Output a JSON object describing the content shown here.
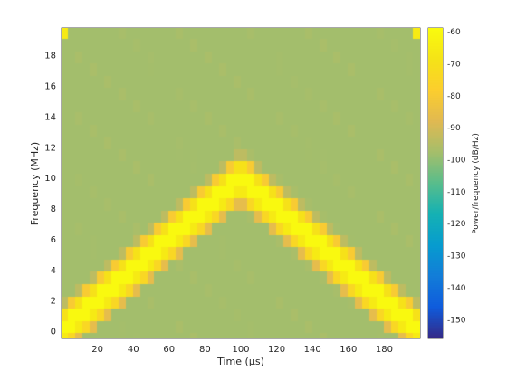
{
  "chart_data": {
    "type": "heatmap",
    "title": "",
    "xlabel": "Time (μs)",
    "ylabel": "Frequency (MHz)",
    "colorbar_label": "Power/frequency (dB/Hz)",
    "colormap": "parula",
    "xlim": [
      0,
      200
    ],
    "ylim": [
      -0.5,
      19.75
    ],
    "clim": [
      -156,
      -59
    ],
    "x_ticks": [
      20,
      40,
      60,
      80,
      100,
      120,
      140,
      160,
      180
    ],
    "x_tick_labels": [
      "20",
      "40",
      "60",
      "80",
      "100",
      "120",
      "140",
      "160",
      "180"
    ],
    "y_ticks": [
      0,
      2,
      4,
      6,
      8,
      10,
      12,
      14,
      16,
      18
    ],
    "y_tick_labels": [
      "0",
      "2",
      "4",
      "6",
      "8",
      "10",
      "12",
      "14",
      "16",
      "18"
    ],
    "c_ticks": [
      -60,
      -70,
      -80,
      -90,
      -100,
      -110,
      -120,
      -130,
      -140,
      -150
    ],
    "c_tick_labels": [
      "-60",
      "-70",
      "-80",
      "-90",
      "-100",
      "-110",
      "-120",
      "-130",
      "-140",
      "-150"
    ],
    "time_bin_width_us": 4,
    "freq_bin_width_mhz": 0.8,
    "background_level_db": -104,
    "peak_level_db": -60,
    "chirp_up": {
      "t": [
        0,
        100
      ],
      "f": [
        0,
        10
      ]
    },
    "chirp_down": {
      "t": [
        100,
        200
      ],
      "f": [
        10,
        0
      ]
    },
    "top_corner_bright_db": -66,
    "grid": false
  }
}
